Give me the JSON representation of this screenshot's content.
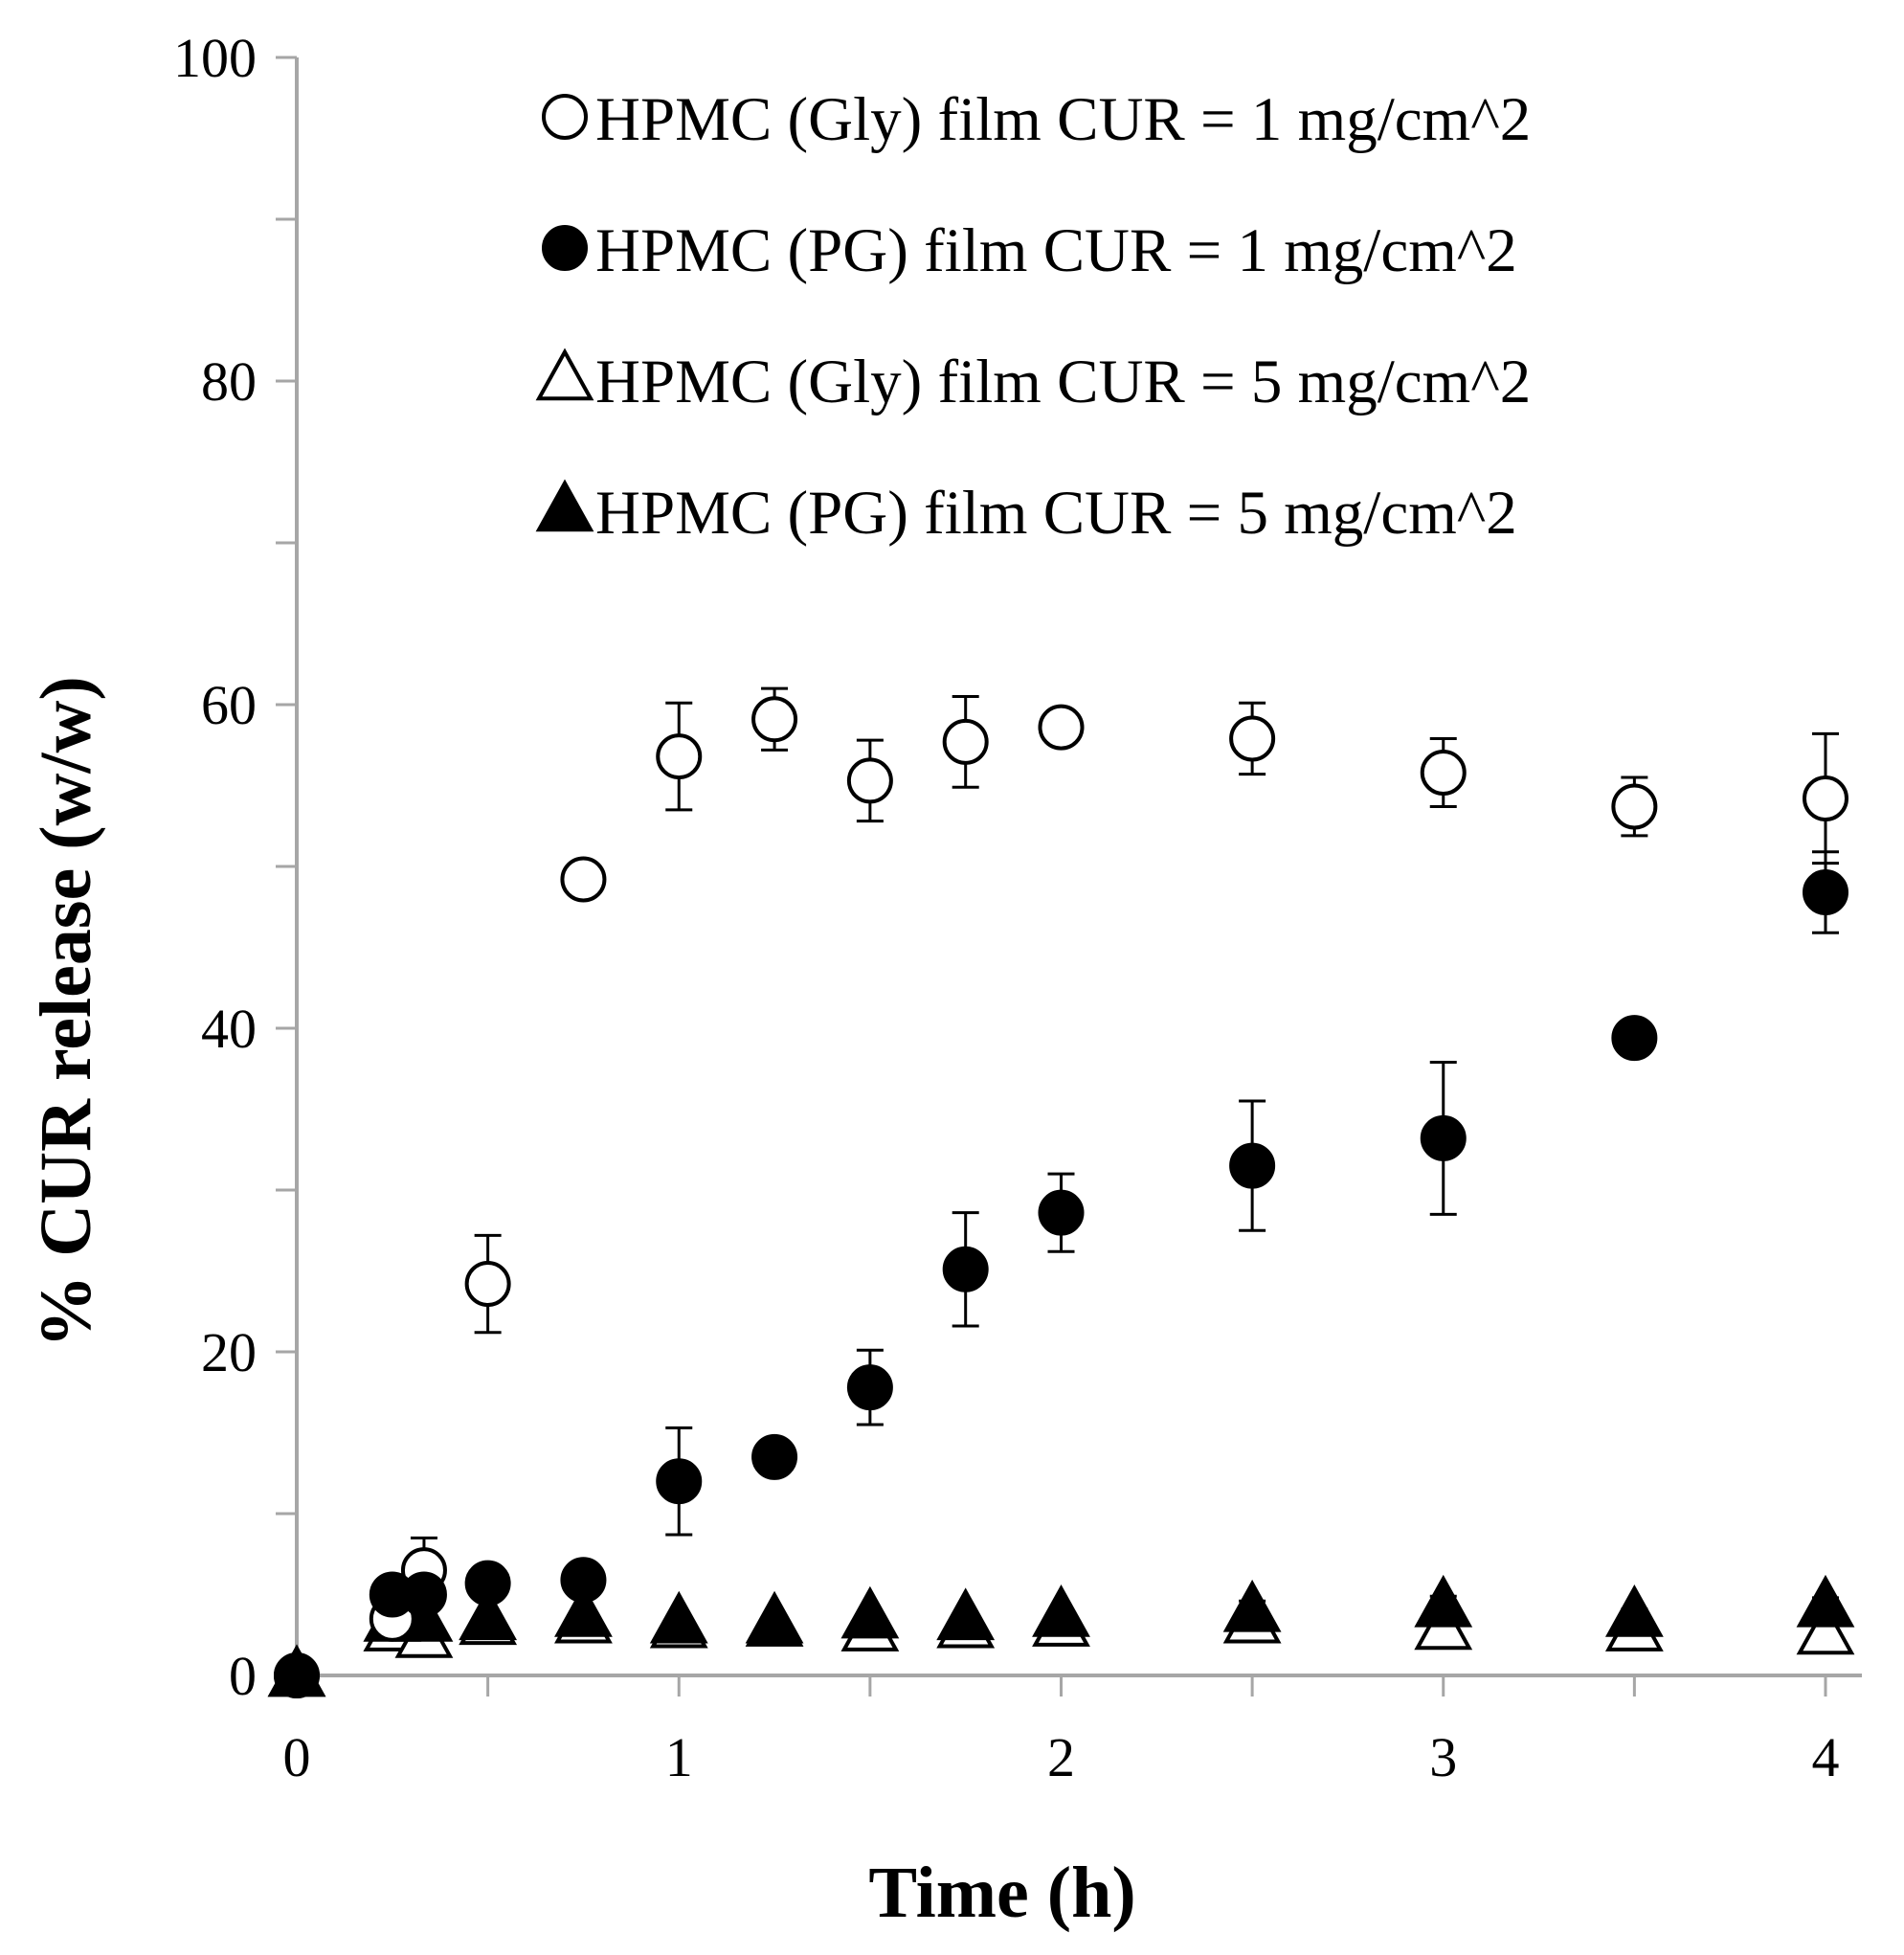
{
  "chart_data": {
    "type": "scatter",
    "title": "",
    "xlabel": "Time (h)",
    "ylabel": "% CUR release (w/w)",
    "xlim": [
      0,
      4
    ],
    "ylim": [
      0,
      100
    ],
    "xticks": [
      0,
      1,
      2,
      3,
      4
    ],
    "xtick_labels": [
      "0",
      "1",
      "2",
      "3",
      "4"
    ],
    "yticks": [
      0,
      20,
      40,
      60,
      80,
      100
    ],
    "ytick_labels": [
      "0",
      "20",
      "40",
      "60",
      "80",
      "100"
    ],
    "grid": false,
    "legend_position": "top",
    "series": [
      {
        "name": "HPMC (Gly) film CUR = 1 mg/cm^2",
        "marker": "circle-open",
        "x": [
          0,
          0.25,
          0.333,
          0.5,
          0.75,
          1,
          1.25,
          1.5,
          1.75,
          2,
          2.5,
          3,
          3.5,
          4
        ],
        "y": [
          0,
          3.5,
          6.5,
          24.2,
          49.2,
          56.8,
          59.1,
          55.3,
          57.7,
          58.6,
          57.9,
          55.8,
          53.7,
          54.2
        ],
        "err": [
          0,
          0.7,
          2.0,
          3.0,
          0.6,
          3.3,
          1.9,
          2.5,
          2.8,
          0.8,
          2.2,
          2.1,
          1.8,
          4.0
        ]
      },
      {
        "name": "HPMC (PG) film CUR = 1 mg/cm^2",
        "marker": "circle-filled",
        "x": [
          0,
          0.25,
          0.333,
          0.5,
          0.75,
          1,
          1.25,
          1.5,
          1.75,
          2,
          2.5,
          3,
          3.5,
          4
        ],
        "y": [
          0,
          5.0,
          5.0,
          5.7,
          5.9,
          12.0,
          13.5,
          17.8,
          25.1,
          28.6,
          31.5,
          33.2,
          39.4,
          48.4
        ],
        "err": [
          0,
          0.4,
          0.5,
          0.4,
          0.4,
          3.3,
          1.0,
          2.3,
          3.5,
          2.4,
          4.0,
          4.7,
          0.9,
          2.5
        ]
      },
      {
        "name": "HPMC (Gly) film CUR = 5 mg/cm^2",
        "marker": "triangle-open",
        "x": [
          0,
          0.25,
          0.333,
          0.5,
          0.75,
          1,
          1.25,
          1.5,
          1.75,
          2,
          2.5,
          3,
          3.5,
          4
        ],
        "y": [
          0,
          2.8,
          2.4,
          3.2,
          3.3,
          3.0,
          3.1,
          2.8,
          3.0,
          3.1,
          3.3,
          2.9,
          2.8,
          2.6
        ],
        "err": [
          0,
          0.3,
          0.4,
          0.3,
          0.3,
          0.3,
          0.3,
          0.3,
          0.3,
          0.3,
          0.4,
          0.4,
          0.3,
          0.3
        ]
      },
      {
        "name": "HPMC (PG) film CUR = 5 mg/cm^2",
        "marker": "triangle-filled",
        "x": [
          0,
          0.25,
          0.333,
          0.5,
          0.75,
          1,
          1.25,
          1.5,
          1.75,
          2,
          2.5,
          3,
          3.5,
          4
        ],
        "y": [
          0,
          3.4,
          3.4,
          3.5,
          3.7,
          3.3,
          3.3,
          3.6,
          3.5,
          3.7,
          4.0,
          4.3,
          3.7,
          4.3
        ],
        "err": [
          0,
          0.3,
          0.3,
          0.3,
          0.3,
          0.3,
          0.3,
          0.3,
          0.3,
          0.3,
          0.6,
          0.6,
          0.4,
          0.5
        ]
      }
    ]
  }
}
